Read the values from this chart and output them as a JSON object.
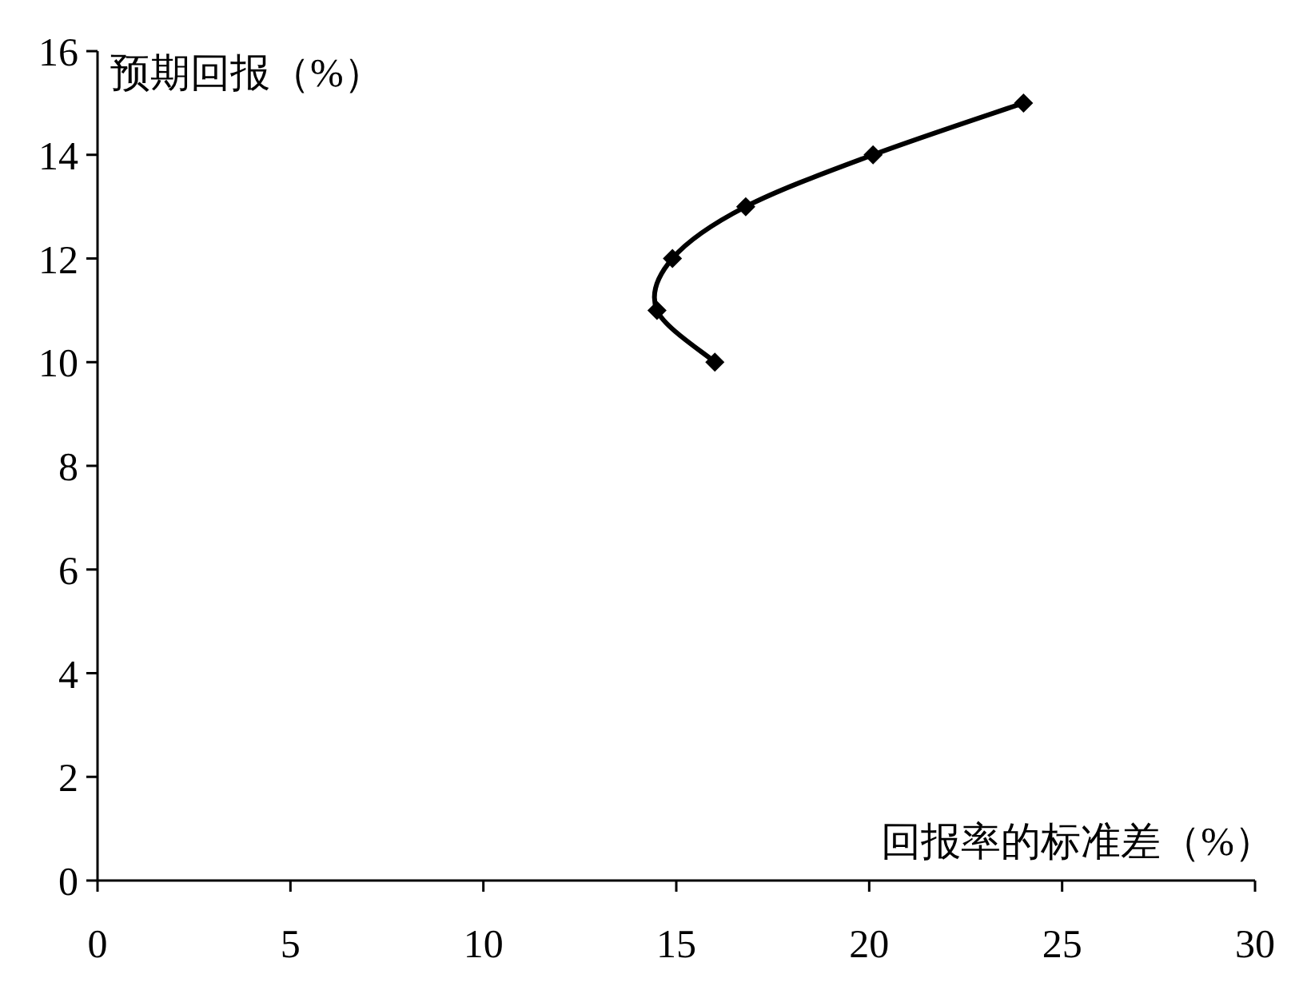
{
  "chart_data": {
    "type": "line",
    "xlabel": "回报率的标准差（%）",
    "ylabel": "预期回报（%）",
    "x": [
      16,
      14.5,
      14.9,
      16.8,
      20.1,
      24
    ],
    "series": [
      {
        "color": "#000000",
        "values": [
          10,
          11,
          12,
          13,
          14,
          15
        ]
      }
    ],
    "marker": "diamond",
    "line_style": "solid",
    "grid": false,
    "xlim": [
      0,
      30
    ],
    "xticks": [
      0,
      5,
      10,
      15,
      20,
      25,
      30
    ],
    "ylim": [
      0,
      16
    ],
    "yticks": [
      0,
      2,
      4,
      6,
      8,
      10,
      12,
      14,
      16
    ]
  }
}
